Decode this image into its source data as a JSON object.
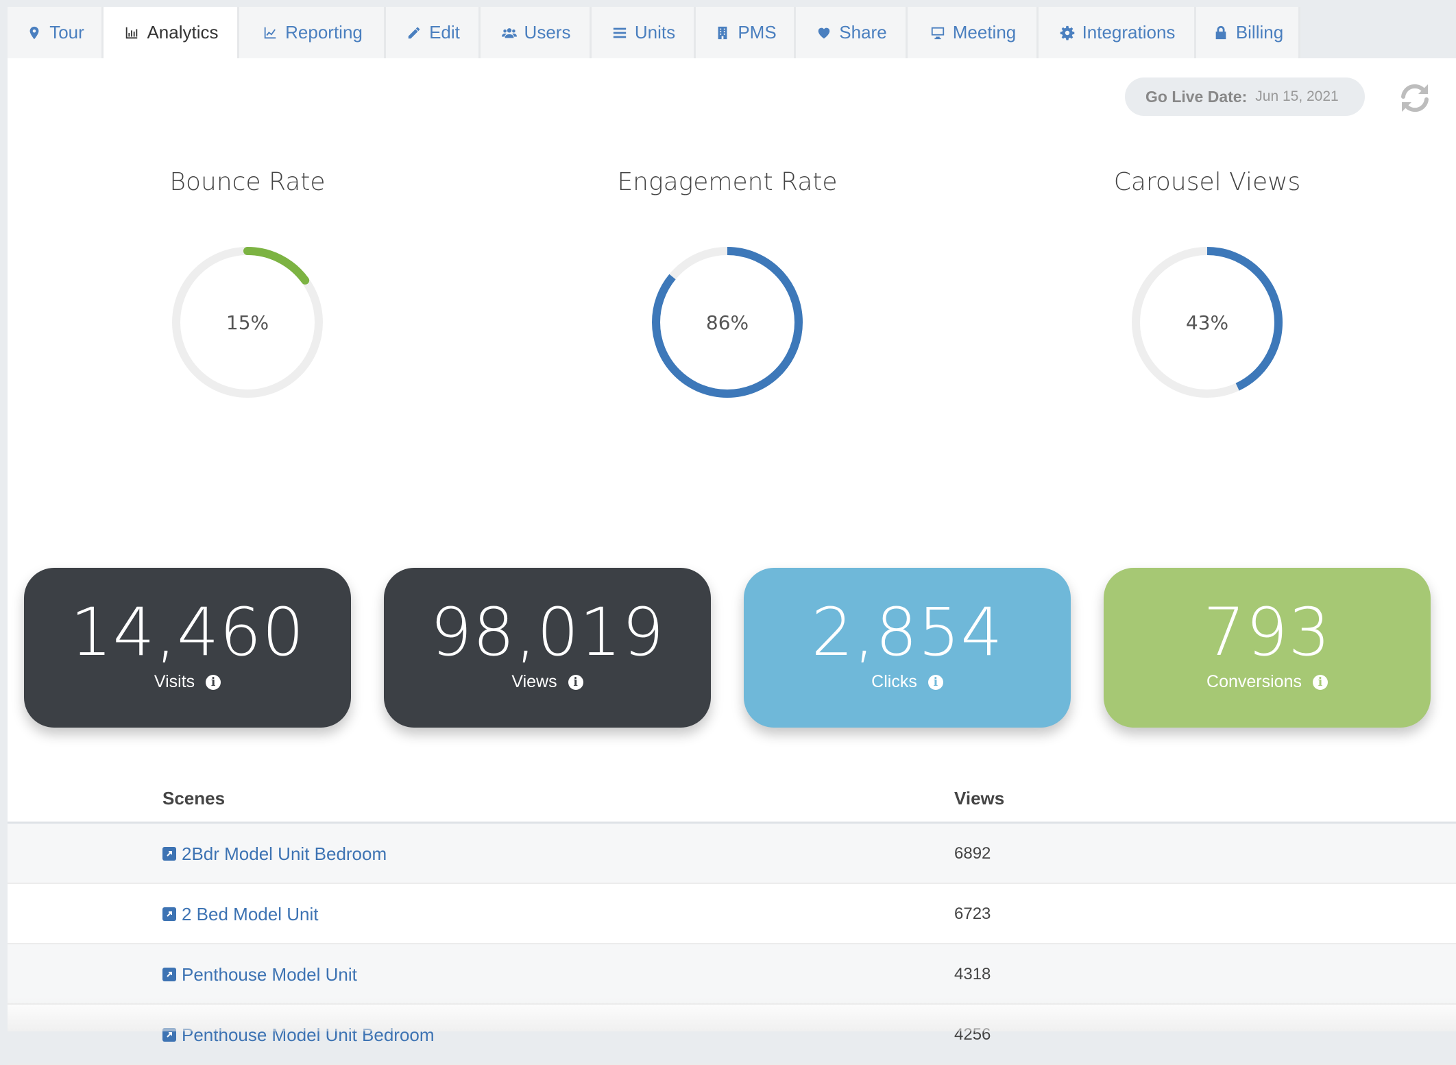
{
  "tabs": [
    {
      "label": "Tour",
      "icon": "map-marker-icon"
    },
    {
      "label": "Analytics",
      "icon": "bar-chart-icon",
      "active": true
    },
    {
      "label": "Reporting",
      "icon": "line-chart-icon"
    },
    {
      "label": "Edit",
      "icon": "pencil-icon"
    },
    {
      "label": "Users",
      "icon": "users-icon"
    },
    {
      "label": "Units",
      "icon": "list-icon"
    },
    {
      "label": "PMS",
      "icon": "building-icon"
    },
    {
      "label": "Share",
      "icon": "heart-icon"
    },
    {
      "label": "Meeting",
      "icon": "monitor-icon"
    },
    {
      "label": "Integrations",
      "icon": "gear-icon"
    },
    {
      "label": "Billing",
      "icon": "lock-icon"
    }
  ],
  "golive": {
    "label": "Go Live Date:",
    "value": "Jun 15, 2021"
  },
  "gauges": [
    {
      "title": "Bounce Rate",
      "percent": 15,
      "display": "15%",
      "color": "#7cb342"
    },
    {
      "title": "Engagement Rate",
      "percent": 86,
      "display": "86%",
      "color": "#3d78b9"
    },
    {
      "title": "Carousel Views",
      "percent": 43,
      "display": "43%",
      "color": "#3d78b9"
    }
  ],
  "stats": [
    {
      "value": "14,460",
      "label": "Visits",
      "color": "#3c4045"
    },
    {
      "value": "98,019",
      "label": "Views",
      "color": "#3c4045"
    },
    {
      "value": "2,854",
      "label": "Clicks",
      "color": "#6fb8d9"
    },
    {
      "value": "793",
      "label": "Conversions",
      "color": "#a6c874"
    }
  ],
  "table": {
    "headers": {
      "scenes": "Scenes",
      "views": "Views"
    },
    "rows": [
      {
        "scene": "2Bdr Model Unit Bedroom",
        "views": "6892"
      },
      {
        "scene": "2 Bed Model Unit",
        "views": "6723"
      },
      {
        "scene": "Penthouse Model Unit",
        "views": "4318"
      },
      {
        "scene": "Penthouse Model Unit Bedroom",
        "views": "4256"
      }
    ]
  }
}
